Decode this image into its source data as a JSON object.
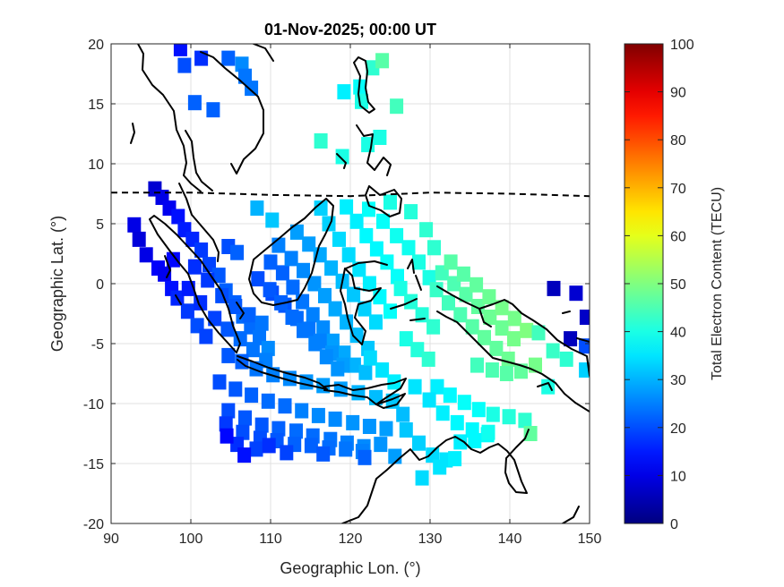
{
  "chart_data": {
    "type": "heatmap",
    "title": "01-Nov-2025; 00:00 UT",
    "xlabel": "Geographic Lon. (°)",
    "ylabel": "Geographic Lat. (°)",
    "xlim": [
      90,
      150
    ],
    "ylim": [
      -20,
      20
    ],
    "xticks": [
      "90",
      "100",
      "110",
      "120",
      "130",
      "140",
      "150"
    ],
    "yticks": [
      "20",
      "15",
      "10",
      "5",
      "0",
      "-5",
      "-10",
      "-15",
      "-20"
    ],
    "grid": true,
    "colorbar": {
      "label": "Total Electron Content (TECU)",
      "range": [
        0,
        100
      ],
      "ticks": [
        "100",
        "90",
        "80",
        "70",
        "60",
        "50",
        "40",
        "30",
        "20",
        "10",
        "0"
      ],
      "colormap": "jet"
    },
    "magnetic_equator": [
      [
        90,
        7.6
      ],
      [
        100,
        7.6
      ],
      [
        110,
        7.4
      ],
      [
        120,
        7.3
      ],
      [
        130,
        7.6
      ],
      [
        140,
        7.5
      ],
      [
        150,
        7.3
      ]
    ],
    "tec_cells": [
      [
        98.7,
        19.6,
        14
      ],
      [
        99.2,
        18.2,
        20
      ],
      [
        101.3,
        18.8,
        17
      ],
      [
        104.7,
        18.8,
        22
      ],
      [
        106.4,
        18.3,
        26
      ],
      [
        106.8,
        17.3,
        24
      ],
      [
        107.6,
        16.3,
        24
      ],
      [
        100.5,
        15.1,
        22
      ],
      [
        102.8,
        14.5,
        22
      ],
      [
        119.2,
        16.0,
        36
      ],
      [
        121.2,
        16.4,
        38
      ],
      [
        121.4,
        15.2,
        40
      ],
      [
        122.8,
        18.0,
        42
      ],
      [
        124.0,
        18.6,
        46
      ],
      [
        125.8,
        14.8,
        44
      ],
      [
        123.7,
        12.2,
        40
      ],
      [
        122.2,
        11.6,
        40
      ],
      [
        116.3,
        11.9,
        42
      ],
      [
        119.0,
        10.6,
        40
      ],
      [
        108.3,
        6.3,
        30
      ],
      [
        110.2,
        5.3,
        32
      ],
      [
        104.7,
        3.1,
        20
      ],
      [
        105.8,
        2.6,
        22
      ],
      [
        92.9,
        4.9,
        10
      ],
      [
        93.5,
        3.7,
        9
      ],
      [
        94.4,
        2.4,
        10
      ],
      [
        95.9,
        1.3,
        12
      ],
      [
        96.7,
        0.8,
        11
      ],
      [
        97.6,
        -0.4,
        14
      ],
      [
        98.3,
        -1.2,
        16
      ],
      [
        99.6,
        -2.3,
        18
      ],
      [
        100.8,
        -3.5,
        20
      ],
      [
        101.9,
        -4.4,
        19
      ],
      [
        95.5,
        7.9,
        8
      ],
      [
        96.4,
        7.2,
        10
      ],
      [
        97.3,
        6.3,
        11
      ],
      [
        98.4,
        5.6,
        14
      ],
      [
        99.2,
        4.5,
        15
      ],
      [
        100.2,
        3.7,
        16
      ],
      [
        101.3,
        2.8,
        18
      ],
      [
        102.3,
        1.6,
        19
      ],
      [
        103.5,
        0.7,
        21
      ],
      [
        104.4,
        -0.6,
        22
      ],
      [
        105.5,
        -1.6,
        22
      ],
      [
        106.5,
        -2.7,
        23
      ],
      [
        107.5,
        -3.6,
        23
      ],
      [
        108.6,
        -4.5,
        24
      ],
      [
        109.7,
        -5.4,
        26
      ],
      [
        97.8,
        2.0,
        13
      ],
      [
        99.7,
        -0.4,
        15
      ],
      [
        101.2,
        -1.6,
        17
      ],
      [
        103.0,
        -2.9,
        19
      ],
      [
        104.6,
        -3.8,
        21
      ],
      [
        106.2,
        -4.6,
        23
      ],
      [
        107.8,
        -5.5,
        24
      ],
      [
        109.4,
        -6.4,
        25
      ],
      [
        100.5,
        1.4,
        17
      ],
      [
        102.1,
        0.3,
        18
      ],
      [
        103.9,
        -1.0,
        20
      ],
      [
        105.6,
        -1.9,
        21
      ],
      [
        107.3,
        -2.6,
        22
      ],
      [
        108.9,
        -3.3,
        24
      ],
      [
        104.7,
        -6.0,
        21
      ],
      [
        106.4,
        -6.5,
        22
      ],
      [
        108.2,
        -7.1,
        24
      ],
      [
        110.3,
        -7.6,
        25
      ],
      [
        112.4,
        -7.9,
        26
      ],
      [
        114.5,
        -8.2,
        27
      ],
      [
        116.6,
        -8.5,
        28
      ],
      [
        118.8,
        -8.8,
        28
      ],
      [
        121.0,
        -9.1,
        30
      ],
      [
        123.2,
        -9.5,
        31
      ],
      [
        125.3,
        -9.8,
        32
      ],
      [
        103.6,
        -8.2,
        20
      ],
      [
        105.6,
        -8.8,
        21
      ],
      [
        107.6,
        -9.3,
        22
      ],
      [
        109.7,
        -9.8,
        23
      ],
      [
        111.8,
        -10.2,
        23
      ],
      [
        113.9,
        -10.6,
        25
      ],
      [
        116.0,
        -11.0,
        26
      ],
      [
        118.1,
        -11.3,
        26
      ],
      [
        120.3,
        -11.6,
        27
      ],
      [
        122.4,
        -11.9,
        27
      ],
      [
        124.5,
        -12.1,
        28
      ],
      [
        126.6,
        -10.9,
        31
      ],
      [
        104.7,
        -10.6,
        20
      ],
      [
        106.8,
        -11.2,
        21
      ],
      [
        108.9,
        -11.8,
        21
      ],
      [
        111.0,
        -12.1,
        22
      ],
      [
        113.2,
        -12.3,
        23
      ],
      [
        115.3,
        -12.7,
        23
      ],
      [
        117.5,
        -13.0,
        24
      ],
      [
        119.6,
        -13.3,
        25
      ],
      [
        121.7,
        -13.6,
        26
      ],
      [
        123.8,
        -13.4,
        27
      ],
      [
        104.4,
        -11.7,
        18
      ],
      [
        106.5,
        -12.4,
        20
      ],
      [
        108.7,
        -12.9,
        20
      ],
      [
        110.8,
        -13.1,
        21
      ],
      [
        113.0,
        -13.4,
        22
      ],
      [
        115.1,
        -13.5,
        22
      ],
      [
        117.3,
        -13.7,
        23
      ],
      [
        119.4,
        -13.8,
        24
      ],
      [
        121.5,
        -14.0,
        25
      ],
      [
        105.8,
        -13.4,
        17
      ],
      [
        108.2,
        -13.8,
        19
      ],
      [
        112.0,
        -14.1,
        19
      ],
      [
        116.6,
        -14.2,
        21
      ],
      [
        121.8,
        -14.5,
        22
      ],
      [
        125.6,
        -14.4,
        28
      ],
      [
        104.5,
        -12.7,
        13
      ],
      [
        106.7,
        -14.3,
        14
      ],
      [
        109.8,
        -13.5,
        17
      ],
      [
        110.0,
        1.8,
        22
      ],
      [
        111.5,
        0.9,
        22
      ],
      [
        112.8,
        -0.3,
        23
      ],
      [
        114.0,
        -1.5,
        24
      ],
      [
        115.3,
        -2.6,
        25
      ],
      [
        116.6,
        -3.7,
        26
      ],
      [
        117.8,
        -4.8,
        28
      ],
      [
        119.2,
        -5.8,
        29
      ],
      [
        120.5,
        -6.8,
        30
      ],
      [
        121.9,
        -7.4,
        31
      ],
      [
        110.2,
        -0.8,
        20
      ],
      [
        111.8,
        -1.8,
        21
      ],
      [
        113.3,
        -2.9,
        23
      ],
      [
        114.8,
        -3.8,
        24
      ],
      [
        116.2,
        -4.8,
        25
      ],
      [
        117.7,
        -5.8,
        27
      ],
      [
        119.1,
        -6.8,
        28
      ],
      [
        108.4,
        0.4,
        20
      ],
      [
        109.9,
        -0.5,
        21
      ],
      [
        111.3,
        -1.6,
        22
      ],
      [
        112.7,
        -2.8,
        23
      ],
      [
        114.1,
        -3.9,
        24
      ],
      [
        115.6,
        -5.0,
        25
      ],
      [
        117.0,
        -6.1,
        26
      ],
      [
        118.4,
        -7.1,
        27
      ],
      [
        111.0,
        3.2,
        25
      ],
      [
        112.6,
        2.1,
        25
      ],
      [
        114.1,
        1.1,
        26
      ],
      [
        115.5,
        0.0,
        27
      ],
      [
        116.8,
        -1.0,
        28
      ],
      [
        118.1,
        -2.1,
        29
      ],
      [
        119.5,
        -3.2,
        30
      ],
      [
        120.8,
        -4.3,
        31
      ],
      [
        122.2,
        -5.4,
        32
      ],
      [
        113.3,
        4.3,
        28
      ],
      [
        114.8,
        3.3,
        28
      ],
      [
        116.2,
        2.4,
        29
      ],
      [
        117.6,
        1.3,
        30
      ],
      [
        119.0,
        0.2,
        31
      ],
      [
        120.4,
        -0.9,
        32
      ],
      [
        121.8,
        -2.1,
        33
      ],
      [
        123.2,
        -3.2,
        34
      ],
      [
        116.3,
        6.3,
        33
      ],
      [
        117.3,
        5.0,
        33
      ],
      [
        118.6,
        3.7,
        34
      ],
      [
        119.8,
        2.4,
        34
      ],
      [
        121.1,
        1.2,
        35
      ],
      [
        122.4,
        0.0,
        36
      ],
      [
        123.7,
        -1.1,
        37
      ],
      [
        125.0,
        -2.3,
        38
      ],
      [
        119.5,
        6.4,
        36
      ],
      [
        120.8,
        5.2,
        36
      ],
      [
        122.0,
        4.0,
        37
      ],
      [
        123.3,
        2.9,
        37
      ],
      [
        124.6,
        1.8,
        38
      ],
      [
        125.9,
        0.6,
        38
      ],
      [
        122.3,
        6.2,
        38
      ],
      [
        124.1,
        5.2,
        38
      ],
      [
        125.8,
        4.0,
        39
      ],
      [
        127.3,
        3.0,
        39
      ],
      [
        128.6,
        1.8,
        40
      ],
      [
        129.9,
        0.5,
        40
      ],
      [
        125.0,
        6.8,
        40
      ],
      [
        127.6,
        6.0,
        41
      ],
      [
        129.5,
        4.5,
        42
      ],
      [
        130.5,
        3.0,
        42
      ],
      [
        122.5,
        -6.2,
        34
      ],
      [
        124.0,
        -7.2,
        35
      ],
      [
        125.5,
        -8.2,
        36
      ],
      [
        127.0,
        -4.6,
        40
      ],
      [
        128.4,
        -5.5,
        41
      ],
      [
        129.8,
        -6.3,
        42
      ],
      [
        126.3,
        -0.4,
        40
      ],
      [
        127.6,
        -1.5,
        41
      ],
      [
        129.0,
        -2.6,
        41
      ],
      [
        130.4,
        -3.6,
        42
      ],
      [
        130.8,
        -0.5,
        43
      ],
      [
        132.3,
        -1.6,
        44
      ],
      [
        133.8,
        -2.6,
        45
      ],
      [
        135.3,
        -3.6,
        46
      ],
      [
        136.8,
        -4.5,
        47
      ],
      [
        138.3,
        -5.4,
        47
      ],
      [
        139.8,
        -6.3,
        48
      ],
      [
        131.5,
        0.9,
        44
      ],
      [
        133.0,
        0.0,
        45
      ],
      [
        134.5,
        -0.9,
        46
      ],
      [
        136.0,
        -1.9,
        47
      ],
      [
        137.5,
        -2.8,
        48
      ],
      [
        139.0,
        -3.7,
        48
      ],
      [
        140.5,
        -4.6,
        49
      ],
      [
        132.6,
        1.8,
        46
      ],
      [
        134.2,
        0.8,
        46
      ],
      [
        135.8,
        -0.1,
        47
      ],
      [
        137.4,
        -1.1,
        48
      ],
      [
        139.0,
        -2.0,
        49
      ],
      [
        140.6,
        -2.9,
        49
      ],
      [
        142.1,
        -3.9,
        50
      ],
      [
        135.9,
        -6.8,
        44
      ],
      [
        137.8,
        -7.2,
        45
      ],
      [
        139.6,
        -7.5,
        46
      ],
      [
        141.4,
        -7.3,
        47
      ],
      [
        143.2,
        -6.8,
        49
      ],
      [
        130.9,
        -8.6,
        36
      ],
      [
        132.5,
        -9.3,
        37
      ],
      [
        134.3,
        -9.9,
        38
      ],
      [
        136.1,
        -10.5,
        38
      ],
      [
        137.9,
        -10.9,
        40
      ],
      [
        139.9,
        -11.1,
        41
      ],
      [
        141.9,
        -11.4,
        42
      ],
      [
        128.1,
        -8.6,
        35
      ],
      [
        129.9,
        -9.7,
        35
      ],
      [
        131.6,
        -10.8,
        36
      ],
      [
        133.4,
        -11.6,
        37
      ],
      [
        135.3,
        -12.2,
        37
      ],
      [
        137.2,
        -12.6,
        38
      ],
      [
        127.0,
        -12.2,
        32
      ],
      [
        128.6,
        -13.3,
        33
      ],
      [
        130.3,
        -14.3,
        34
      ],
      [
        132.0,
        -14.7,
        35
      ],
      [
        133.8,
        -13.2,
        36
      ],
      [
        135.6,
        -13.1,
        37
      ],
      [
        137.3,
        -12.4,
        39
      ],
      [
        142.6,
        -12.5,
        47
      ],
      [
        131.2,
        -15.3,
        35
      ],
      [
        133.1,
        -14.6,
        36
      ],
      [
        129.0,
        -16.2,
        34
      ],
      [
        145.5,
        -0.4,
        6
      ],
      [
        148.3,
        -0.8,
        8
      ],
      [
        149.6,
        -2.8,
        7
      ],
      [
        147.6,
        -4.6,
        6
      ],
      [
        149.5,
        -5.2,
        20
      ],
      [
        149.5,
        -7.2,
        33
      ],
      [
        143.6,
        -4.1,
        44
      ],
      [
        145.4,
        -5.6,
        43
      ],
      [
        147.1,
        -6.3,
        42
      ],
      [
        144.8,
        -8.6,
        40
      ]
    ]
  }
}
